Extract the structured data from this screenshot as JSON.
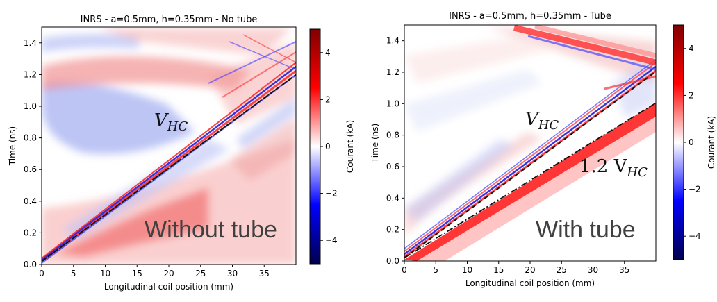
{
  "chart_data": [
    {
      "type": "heatmap",
      "title": "INRS - a=0.5mm, h=0.35mm - No tube",
      "xlabel": "Longitudinal coil position (mm)",
      "ylabel": "Time (ns)",
      "xlim": [
        0,
        40
      ],
      "ylim": [
        0,
        1.5
      ],
      "xticks": [
        0,
        5,
        10,
        15,
        20,
        25,
        30,
        35
      ],
      "yticks": [
        0.0,
        0.2,
        0.4,
        0.6,
        0.8,
        1.0,
        1.2,
        1.4
      ],
      "colorbar": {
        "label": "Courant (kA)",
        "range": [
          -5,
          5
        ],
        "ticks": [
          -4,
          -2,
          0,
          2,
          4
        ],
        "colormap": "seismic"
      },
      "annotations": [
        {
          "text": "V",
          "sub": "HC"
        },
        {
          "text": "Without tube"
        }
      ],
      "reference_lines": [
        {
          "style": "dashed",
          "x": [
            0,
            40
          ],
          "y": [
            0.02,
            1.22
          ]
        },
        {
          "style": "dash-dot",
          "x": [
            0,
            40
          ],
          "y": [
            0.02,
            1.22
          ]
        }
      ]
    },
    {
      "type": "heatmap",
      "title": "INRS - a=0.5mm, h=0.35mm - Tube",
      "xlabel": "Longitudinal coil position (mm)",
      "ylabel": "Time (ns)",
      "xlim": [
        0,
        40
      ],
      "ylim": [
        0,
        1.5
      ],
      "xticks": [
        0,
        5,
        10,
        15,
        20,
        25,
        30,
        35
      ],
      "yticks": [
        0.0,
        0.2,
        0.4,
        0.6,
        0.8,
        1.0,
        1.2,
        1.4
      ],
      "colorbar": {
        "label": "Courant (kA)",
        "range": [
          -5,
          5
        ],
        "ticks": [
          -4,
          -2,
          0,
          2,
          4
        ],
        "colormap": "seismic"
      },
      "annotations": [
        {
          "text": "V",
          "sub": "HC"
        },
        {
          "text": "1.2 V",
          "sub": "HC"
        },
        {
          "text": "With tube"
        }
      ],
      "reference_lines": [
        {
          "style": "dashed",
          "x": [
            0,
            40
          ],
          "y": [
            0.02,
            1.22
          ]
        },
        {
          "style": "dash-dot",
          "x": [
            0,
            40
          ],
          "y": [
            0.02,
            1.02
          ]
        }
      ]
    }
  ]
}
